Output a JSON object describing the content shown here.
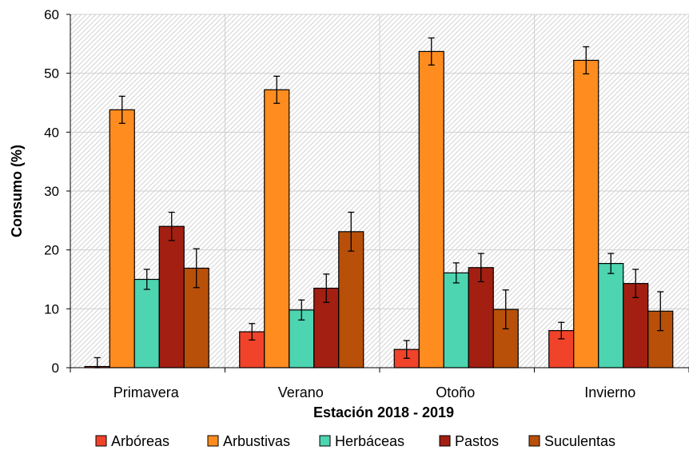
{
  "chart_data": {
    "type": "bar",
    "title": "",
    "xlabel": "Estación 2018 - 2019",
    "ylabel": "Consumo (%)",
    "ylim": [
      0,
      60
    ],
    "yticks": [
      0,
      10,
      20,
      30,
      40,
      50,
      60
    ],
    "grid": true,
    "legend_position": "bottom",
    "categories": [
      "Primavera",
      "Verano",
      "Otoño",
      "Invierno"
    ],
    "series": [
      {
        "name": "Arbóreas",
        "color": "#f0432a",
        "values": [
          0.2,
          6.1,
          3.1,
          6.3
        ],
        "errors": [
          1.5,
          1.4,
          1.5,
          1.4
        ]
      },
      {
        "name": "Arbustivas",
        "color": "#ff8c1f",
        "values": [
          43.8,
          47.2,
          53.7,
          52.2
        ],
        "errors": [
          2.3,
          2.3,
          2.3,
          2.3
        ]
      },
      {
        "name": "Herbáceas",
        "color": "#4dd4b0",
        "values": [
          15.0,
          9.8,
          16.1,
          17.7
        ],
        "errors": [
          1.7,
          1.7,
          1.7,
          1.7
        ]
      },
      {
        "name": "Pastos",
        "color": "#a31f12",
        "values": [
          24.0,
          13.5,
          17.0,
          14.3
        ],
        "errors": [
          2.4,
          2.4,
          2.4,
          2.4
        ]
      },
      {
        "name": "Suculentas",
        "color": "#b85009",
        "values": [
          16.9,
          23.1,
          9.9,
          9.6
        ],
        "errors": [
          3.3,
          3.3,
          3.3,
          3.3
        ]
      }
    ]
  }
}
